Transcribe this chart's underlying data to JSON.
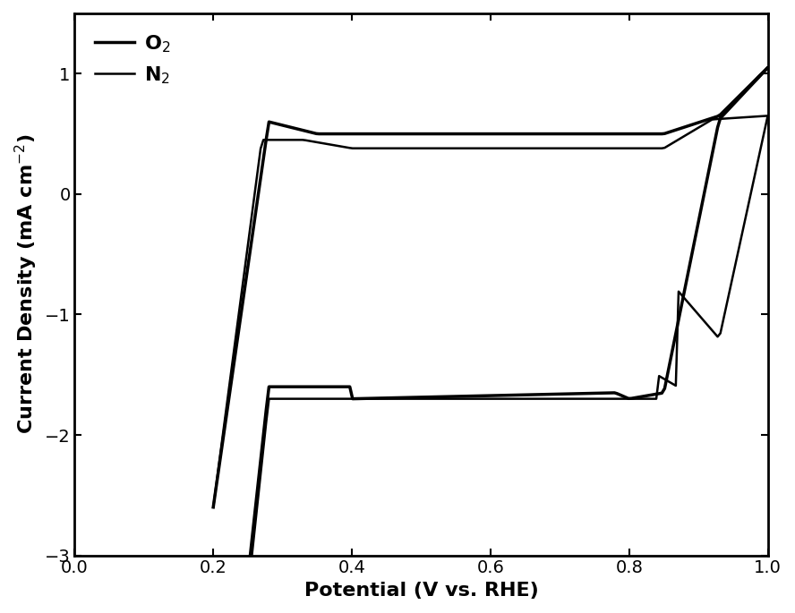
{
  "xlabel": "Potential (V vs. RHE)",
  "ylabel": "Current Density (mA cm⁻²)",
  "xlim": [
    0.0,
    1.0
  ],
  "ylim": [
    -3.0,
    1.5
  ],
  "xticks": [
    0.0,
    0.2,
    0.4,
    0.6,
    0.8,
    1.0
  ],
  "yticks": [
    -3,
    -2,
    -1,
    0,
    1
  ],
  "line_color": "#000000",
  "linewidth_o2": 2.5,
  "linewidth_n2": 1.8,
  "legend_labels": [
    "O₂",
    "N₂"
  ],
  "background_color": "#ffffff",
  "tick_fontsize": 14,
  "label_fontsize": 16
}
